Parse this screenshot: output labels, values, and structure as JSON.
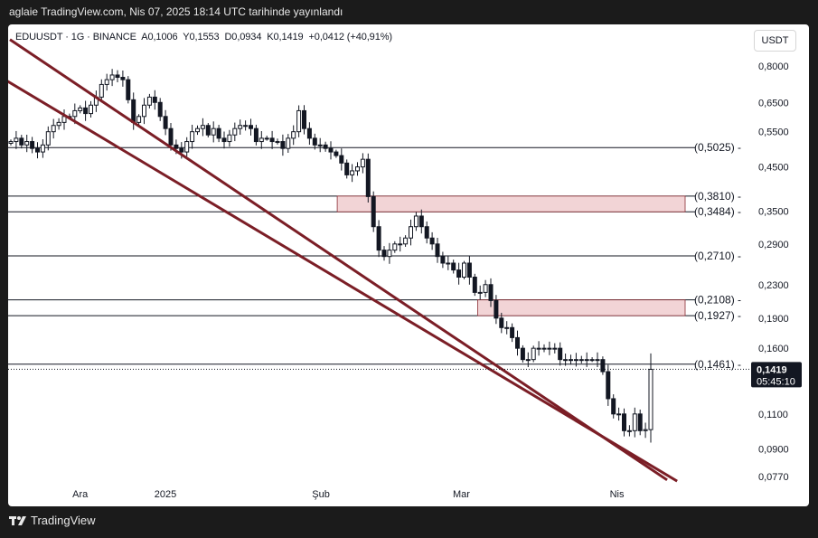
{
  "header": {
    "publish_line": "aglaie TradingView.com, Nis 07, 2025 18:14 UTC tarihinde yayınlandı"
  },
  "legend": {
    "symbol": "EDUUSDT · 1G · BINANCE",
    "open": "A0,1006",
    "high": "Y0,1553",
    "low": "D0,0934",
    "close": "K0,1419",
    "change": "+0,0412 (+40,91%)"
  },
  "currency_button": "USDT",
  "footer": {
    "brand": "TradingView"
  },
  "colors": {
    "trendline": "#7b1e26",
    "zone_fill": "#f2d4d6",
    "zone_stroke": "#8a2a32",
    "candle": "#131722",
    "price_tag_bg": "#131722",
    "price_tag_text": "#ffffff"
  },
  "chart_data": {
    "type": "candlestick",
    "scale": "log",
    "symbol": "EDUUSDT",
    "interval": "1G",
    "exchange": "BINANCE",
    "x_ticks": [
      "Ara",
      "2025",
      "Şub",
      "Mar",
      "Nis"
    ],
    "y_ticks": [
      "0,8000",
      "0,6500",
      "0,5500",
      "0,4500",
      "0,3500",
      "0,2900",
      "0,2300",
      "0,1900",
      "0,1600",
      "0,1100",
      "0,0900",
      "0,0770"
    ],
    "y_tick_values": [
      0.8,
      0.65,
      0.55,
      0.45,
      0.35,
      0.29,
      0.23,
      0.19,
      0.16,
      0.11,
      0.09,
      0.077
    ],
    "level_lines": [
      {
        "label": "(0,5025)",
        "value": 0.5025
      },
      {
        "label": "(0,3810)",
        "value": 0.381
      },
      {
        "label": "(0,3484)",
        "value": 0.3484
      },
      {
        "label": "(0,2710)",
        "value": 0.271
      },
      {
        "label": "(0,2108)",
        "value": 0.2108
      },
      {
        "label": "(0,1927)",
        "value": 0.1927
      },
      {
        "label": "(0,1461)",
        "value": 0.1461
      }
    ],
    "zones": [
      {
        "low": 0.3484,
        "high": 0.381,
        "start": "Şub"
      },
      {
        "low": 0.1927,
        "high": 0.2108,
        "start": "Mar"
      }
    ],
    "current_price": {
      "label": "0,1419",
      "value": 0.1419,
      "countdown": "05:45:10"
    },
    "closes": [
      0.52,
      0.53,
      0.51,
      0.52,
      0.5,
      0.49,
      0.51,
      0.55,
      0.57,
      0.58,
      0.6,
      0.6,
      0.62,
      0.63,
      0.61,
      0.64,
      0.67,
      0.72,
      0.74,
      0.76,
      0.75,
      0.74,
      0.66,
      0.58,
      0.6,
      0.64,
      0.67,
      0.65,
      0.6,
      0.56,
      0.51,
      0.5,
      0.49,
      0.52,
      0.55,
      0.56,
      0.57,
      0.54,
      0.56,
      0.53,
      0.52,
      0.54,
      0.56,
      0.57,
      0.57,
      0.56,
      0.52,
      0.53,
      0.53,
      0.52,
      0.52,
      0.5,
      0.53,
      0.55,
      0.62,
      0.56,
      0.53,
      0.51,
      0.51,
      0.5,
      0.49,
      0.48,
      0.46,
      0.43,
      0.44,
      0.45,
      0.47,
      0.38,
      0.32,
      0.28,
      0.27,
      0.28,
      0.29,
      0.29,
      0.3,
      0.32,
      0.34,
      0.32,
      0.3,
      0.29,
      0.27,
      0.26,
      0.26,
      0.25,
      0.24,
      0.26,
      0.24,
      0.22,
      0.22,
      0.23,
      0.21,
      0.19,
      0.18,
      0.18,
      0.17,
      0.16,
      0.15,
      0.15,
      0.16,
      0.16,
      0.16,
      0.16,
      0.16,
      0.15,
      0.15,
      0.15,
      0.15,
      0.15,
      0.15,
      0.15,
      0.15,
      0.14,
      0.12,
      0.11,
      0.11,
      0.1,
      0.1,
      0.11,
      0.1,
      0.1006,
      0.1419
    ],
    "trendlines": [
      {
        "name": "upper",
        "from": {
          "date": "2024-12-01",
          "price": 0.93
        },
        "to": {
          "date": "2025-04-11",
          "price": 0.0755
        }
      },
      {
        "name": "lower",
        "from": {
          "date": "2024-11-30",
          "price": 0.74
        },
        "to": {
          "date": "2025-04-13",
          "price": 0.075
        }
      }
    ]
  }
}
